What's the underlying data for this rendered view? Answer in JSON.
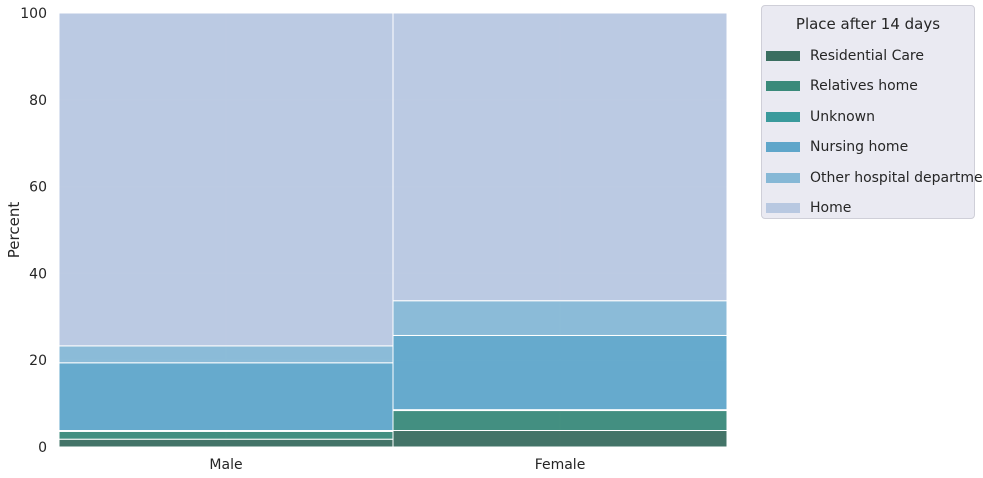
{
  "chart_data": {
    "type": "bar",
    "stacked": true,
    "normalized": true,
    "categories": [
      "Male",
      "Female"
    ],
    "ylabel": "Percent",
    "xlabel": "",
    "ylim": [
      0,
      100
    ],
    "yticks": [
      0,
      20,
      40,
      60,
      80,
      100
    ],
    "grid": true,
    "legend_placement": "outside top-right",
    "legend_title": "Place after 14 days",
    "series": [
      {
        "name": "Residential Care",
        "color": "#3a6e60",
        "values": [
          1.8,
          3.8
        ]
      },
      {
        "name": "Relatives home",
        "color": "#3a8a7a",
        "values": [
          1.8,
          4.6
        ]
      },
      {
        "name": "Unknown",
        "color": "#3a9a9c",
        "values": [
          0.2,
          0.2
        ]
      },
      {
        "name": "Nursing home",
        "color": "#5fa6ca",
        "values": [
          15.6,
          17.1
        ]
      },
      {
        "name": "Other hospital departments",
        "color": "#86b8d6",
        "values": [
          3.9,
          8.0
        ]
      },
      {
        "name": "Home",
        "color": "#b8c8e1",
        "values": [
          76.7,
          66.3
        ]
      }
    ]
  }
}
